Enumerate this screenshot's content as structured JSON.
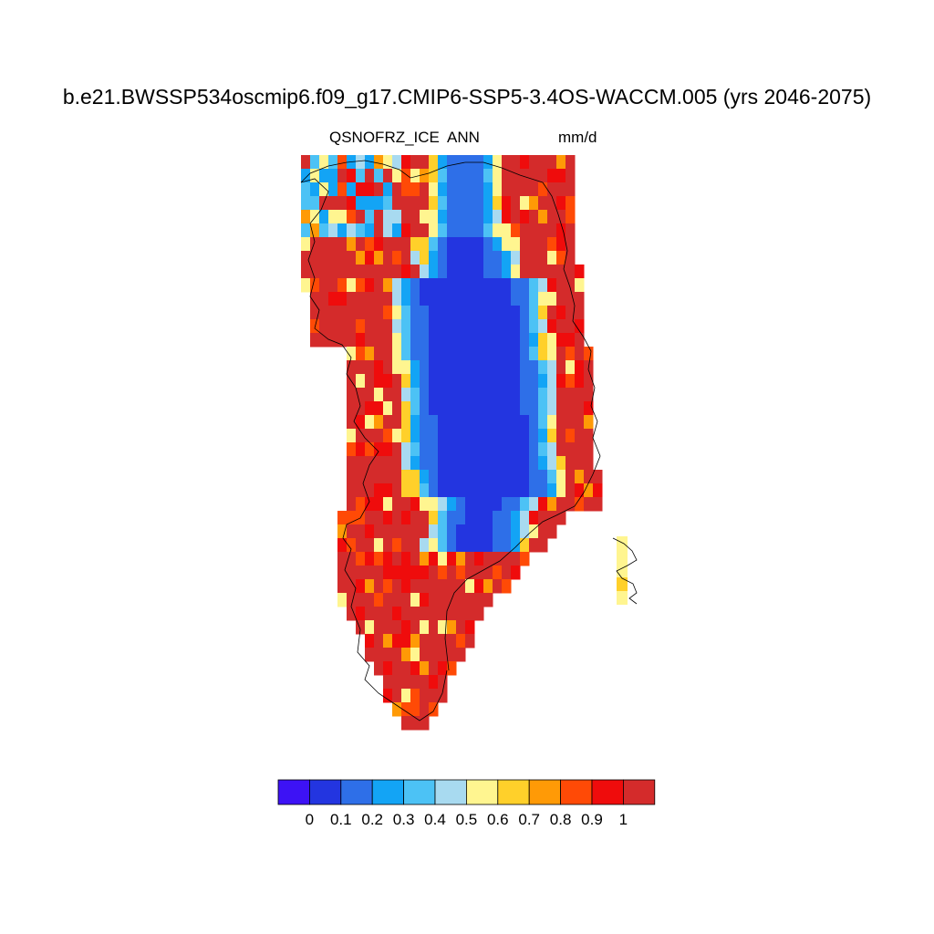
{
  "title": "b.e21.BWSSP534oscmip6.f09_g17.CMIP6-SSP5-3.4OS-WACCM.005 (yrs 2046-2075)",
  "variable": "QSNOFRZ_ICE",
  "season": "ANN",
  "units": "mm/d",
  "colorbar": {
    "labels": [
      "0",
      "0.1",
      "0.2",
      "0.3",
      "0.4",
      "0.5",
      "0.6",
      "0.7",
      "0.8",
      "0.9",
      "1"
    ],
    "colors": [
      "#3d12f5",
      "#2335e0",
      "#2e6fe8",
      "#13a4f5",
      "#4cc2f5",
      "#a8daf0",
      "#fff590",
      "#ffd02a",
      "#ff9a06",
      "#ff4a06",
      "#ef0c0c",
      "#d42b2b"
    ]
  },
  "map": {
    "region": "Greenland",
    "level_colors": [
      "#3d12f5",
      "#2335e0",
      "#2e6fe8",
      "#13a4f5",
      "#4cc2f5",
      "#a8daf0",
      "#fff590",
      "#ffd02a",
      "#ff9a06",
      "#ff4a06",
      "#ef0c0c",
      "#d42b2b"
    ]
  }
}
